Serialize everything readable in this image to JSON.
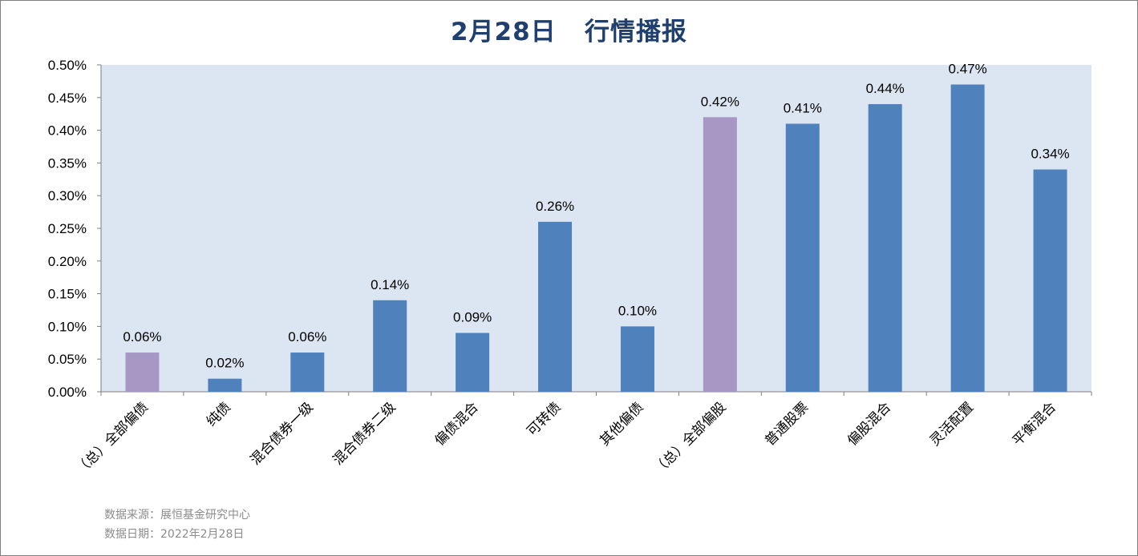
{
  "chart_data": {
    "type": "bar",
    "title": "2月28日   行情播报",
    "xlabel": "",
    "ylabel": "",
    "ylim": [
      0,
      0.005
    ],
    "yticks": [
      "0.00%",
      "0.05%",
      "0.10%",
      "0.15%",
      "0.20%",
      "0.25%",
      "0.30%",
      "0.35%",
      "0.40%",
      "0.45%",
      "0.50%"
    ],
    "categories": [
      "（总）全部偏债",
      "纯债",
      "混合债券一级",
      "混合债券二级",
      "偏债混合",
      "可转债",
      "其他偏债",
      "（总）全部偏股",
      "普通股票",
      "偏股混合",
      "灵活配置",
      "平衡混合"
    ],
    "values": [
      0.0006,
      0.0002,
      0.0006,
      0.0014,
      0.0009,
      0.0026,
      0.001,
      0.0042,
      0.0041,
      0.0044,
      0.0047,
      0.0034
    ],
    "data_labels": [
      "0.06%",
      "0.02%",
      "0.06%",
      "0.14%",
      "0.09%",
      "0.26%",
      "0.10%",
      "0.42%",
      "0.41%",
      "0.44%",
      "0.47%",
      "0.34%"
    ],
    "bar_kinds": [
      "total",
      "sub",
      "sub",
      "sub",
      "sub",
      "sub",
      "sub",
      "total",
      "sub",
      "sub",
      "sub",
      "sub"
    ],
    "grid": false,
    "legend": "none"
  },
  "colors": {
    "plot_background": "#dce6f2",
    "bar_total": "#a697c4",
    "bar_sub": "#4f81bd",
    "title": "#1f3f6e"
  },
  "footer": {
    "source": "数据来源：展恒基金研究中心",
    "date": "数据日期：2022年2月28日"
  }
}
